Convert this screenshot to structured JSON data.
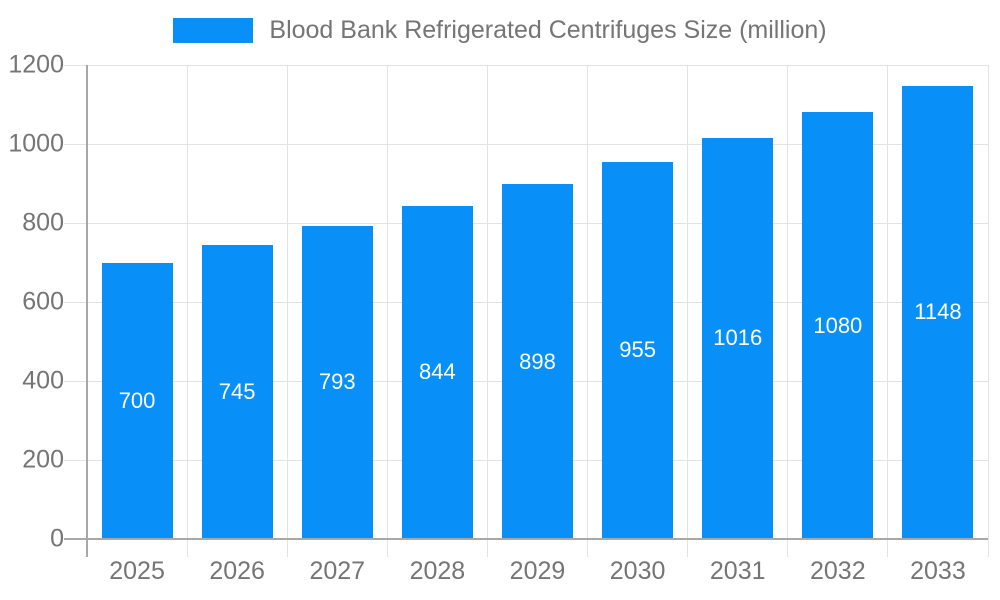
{
  "legend": {
    "label": "Blood Bank Refrigerated Centrifuges Size (million)"
  },
  "colors": {
    "background": "#ffffff",
    "bar": "#0890f8",
    "grid": "#e3e3e3",
    "axis": "#a8a8a8",
    "text": "#757575",
    "value_label": "#ffffff"
  },
  "chart_data": {
    "type": "bar",
    "title": "Blood Bank Refrigerated Centrifuges Size (million)",
    "series_name": "Blood Bank Refrigerated Centrifuges Size (million)",
    "categories": [
      "2025",
      "2026",
      "2027",
      "2028",
      "2029",
      "2030",
      "2031",
      "2032",
      "2033"
    ],
    "values": [
      700,
      745,
      793,
      844,
      898,
      955,
      1016,
      1080,
      1148
    ],
    "xlabel": "",
    "ylabel": "",
    "ylim": [
      0,
      1200
    ],
    "yticks": [
      0,
      200,
      400,
      600,
      800,
      1000,
      1200
    ],
    "grid": "both",
    "legend_position": "top-center",
    "value_labels": "inside-center"
  }
}
